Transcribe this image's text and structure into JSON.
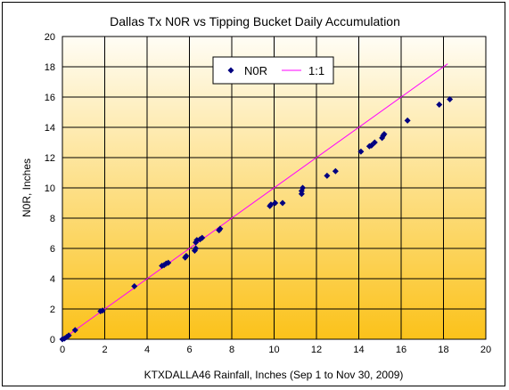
{
  "chart_data": {
    "type": "scatter",
    "title": "Dallas Tx N0R vs Tipping Bucket Daily Accumulation",
    "xlabel": "KTXDALLA46 Rainfall, Inches (Sep 1 to Nov 30, 2009)",
    "ylabel": "N0R, Inches",
    "xlim": [
      0,
      20
    ],
    "ylim": [
      0,
      20
    ],
    "xticks": [
      0,
      2,
      4,
      6,
      8,
      10,
      12,
      14,
      16,
      18,
      20
    ],
    "yticks": [
      0,
      2,
      4,
      6,
      8,
      10,
      12,
      14,
      16,
      18,
      20
    ],
    "grid": true,
    "legend_position": "top-center",
    "background_gradient": [
      "#fffdf5",
      "#fbc21a"
    ],
    "series": [
      {
        "name": "N0R",
        "kind": "points",
        "color": "#000080",
        "marker": "diamond",
        "x": [
          0.0,
          0.1,
          0.2,
          0.3,
          0.6,
          1.8,
          1.9,
          3.4,
          4.7,
          4.8,
          4.9,
          5.0,
          5.8,
          5.85,
          6.25,
          6.3,
          6.3,
          6.35,
          6.5,
          6.6,
          7.4,
          7.45,
          9.8,
          9.85,
          10.05,
          10.4,
          11.3,
          11.3,
          11.35,
          12.5,
          12.9,
          14.1,
          14.5,
          14.6,
          14.75,
          15.1,
          15.15,
          15.2,
          16.3,
          17.8,
          18.3
        ],
        "y": [
          0.0,
          0.05,
          0.15,
          0.25,
          0.6,
          1.85,
          1.9,
          3.5,
          4.85,
          4.9,
          5.0,
          5.05,
          5.4,
          5.5,
          5.85,
          6.0,
          6.4,
          6.55,
          6.6,
          6.7,
          7.2,
          7.3,
          8.8,
          8.9,
          9.0,
          9.0,
          9.6,
          9.8,
          10.0,
          10.8,
          11.1,
          12.4,
          12.75,
          12.8,
          13.0,
          13.3,
          13.45,
          13.55,
          14.45,
          15.5,
          15.85
        ]
      },
      {
        "name": "1:1",
        "kind": "line",
        "color": "#ff00ff",
        "x": [
          0,
          18.2
        ],
        "y": [
          0,
          18.2
        ]
      }
    ]
  }
}
